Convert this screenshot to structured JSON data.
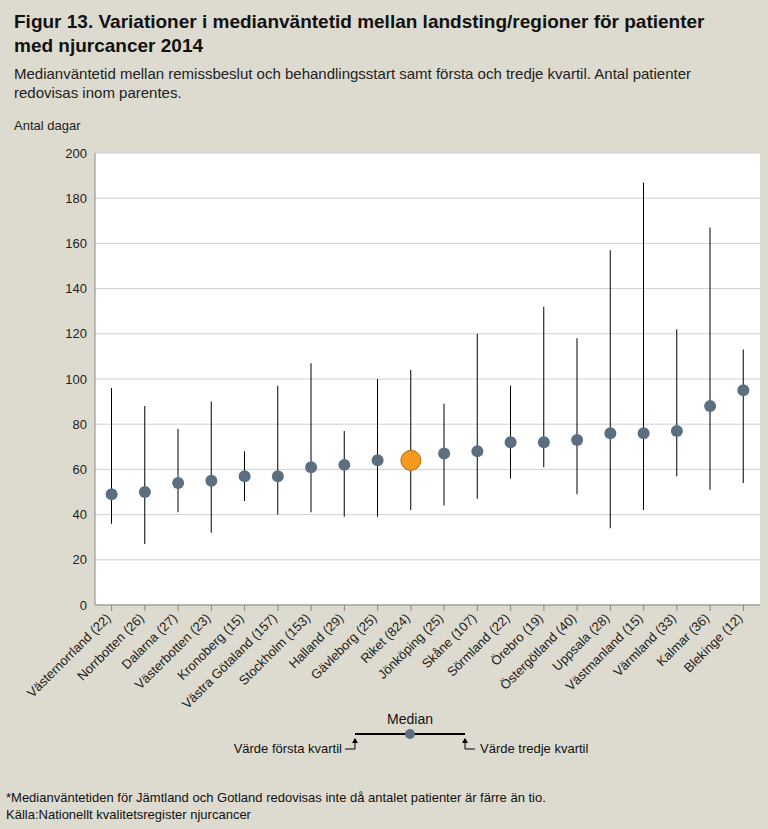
{
  "chart_data": {
    "type": "range_dot",
    "title": "Figur 13. Variationer i medianväntetid mellan landsting/regioner för patienter med njurcancer 2014",
    "subtitle": "Medianväntetid mellan remissbeslut och behandlingsstart  samt första och tredje kvartil. Antal patienter redovisas inom parentes.",
    "y_label": "Antal dagar",
    "categories": [
      "Västernorrland (22)",
      "Norrbotten (26)",
      "Dalarna (27)",
      "Västerbotten (23)",
      "Kronoberg (15)",
      "Västra Götaland (157)",
      "Stockholm (153)",
      "Halland (29)",
      "Gävleborg (25)",
      "Riket (824)",
      "Jönköping (25)",
      "Skåne (107)",
      "Sörmland (22)",
      "Örebro (19)",
      "Östergötland (40)",
      "Uppsala (28)",
      "Västmanland (15)",
      "Värmland (33)",
      "Kalmar (36)",
      "Blekinge (12)"
    ],
    "series": [
      {
        "name": "Median",
        "values": [
          49,
          50,
          54,
          55,
          57,
          57,
          61,
          62,
          64,
          64,
          67,
          68,
          72,
          72,
          73,
          76,
          76,
          77,
          88,
          95
        ]
      },
      {
        "name": "Värde första kvartil",
        "values": [
          36,
          27,
          41,
          32,
          46,
          40,
          41,
          39,
          39,
          42,
          44,
          47,
          56,
          61,
          49,
          34,
          42,
          57,
          51,
          54
        ]
      },
      {
        "name": "Värde tredje kvartil",
        "values": [
          96,
          88,
          78,
          90,
          68,
          97,
          107,
          77,
          100,
          104,
          89,
          120,
          97,
          132,
          118,
          157,
          187,
          122,
          167,
          113
        ]
      }
    ],
    "colors": [
      "#5b6f80",
      "#5b6f80",
      "#5b6f80",
      "#5b6f80",
      "#5b6f80",
      "#5b6f80",
      "#5b6f80",
      "#5b6f80",
      "#5b6f80",
      "#f39a1f",
      "#5b6f80",
      "#5b6f80",
      "#5b6f80",
      "#5b6f80",
      "#5b6f80",
      "#5b6f80",
      "#5b6f80",
      "#5b6f80",
      "#5b6f80",
      "#5b6f80"
    ],
    "ylim": [
      0,
      200
    ],
    "yticks": [
      0,
      20,
      40,
      60,
      80,
      100,
      120,
      140,
      160,
      180,
      200
    ],
    "grid": true,
    "notes": [
      "*Medianväntetiden för Jämtland och Gotland redovisas inte då antalet patienter är färre än tio.",
      "Källa:Nationellt kvalitetsregister njurcancer"
    ]
  }
}
